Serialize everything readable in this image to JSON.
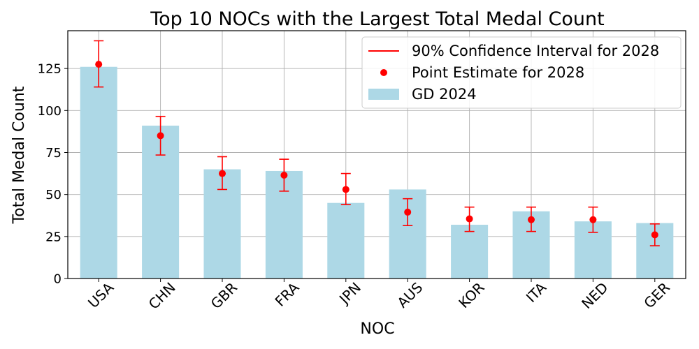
{
  "chart_data": {
    "type": "bar",
    "title": "Top 10 NOCs with the Largest Total Medal Count",
    "xlabel": "NOC",
    "ylabel": "Total Medal Count",
    "ylim": [
      0,
      147.5
    ],
    "yticks": [
      0,
      25,
      50,
      75,
      100,
      125
    ],
    "grid": true,
    "legend_position": "top-right",
    "categories": [
      "USA",
      "CHN",
      "GBR",
      "FRA",
      "JPN",
      "AUS",
      "KOR",
      "ITA",
      "NED",
      "GER"
    ],
    "series": [
      {
        "name": "GD 2024",
        "kind": "bar",
        "color": "#add8e6",
        "values": [
          126,
          91,
          65,
          64,
          45,
          53,
          32,
          40,
          34,
          33
        ]
      },
      {
        "name": "Point Estimate for 2028",
        "kind": "point",
        "color": "#ff0000",
        "values": [
          127.5,
          85,
          62.5,
          61.5,
          53,
          39.5,
          35.5,
          35,
          35,
          26
        ]
      },
      {
        "name": "90% Confidence Interval for 2028",
        "kind": "errorbar",
        "color": "#ff0000",
        "lower": [
          114,
          73.5,
          53,
          52,
          44,
          31.5,
          28,
          28,
          27.5,
          19.5
        ],
        "upper": [
          141.5,
          96.5,
          72.5,
          71,
          62.5,
          47.5,
          42.5,
          42.5,
          42.5,
          32.5
        ]
      }
    ],
    "legend": [
      "90% Confidence Interval for 2028",
      "Point Estimate for 2028",
      "GD 2024"
    ]
  }
}
